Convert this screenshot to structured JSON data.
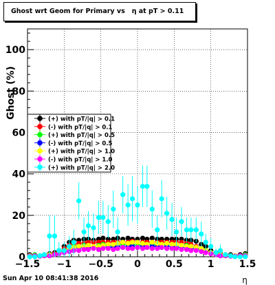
{
  "title": "Ghost wrt Geom for Primary vs   η at pT > 0.11",
  "footer": {
    "timestamp": "Sun Apr 10 08:41:38 2016"
  },
  "chart_data": {
    "type": "scatter",
    "title": "Ghost wrt Geom for Primary vs   η at pT > 0.11",
    "xlabel": "η",
    "ylabel": "Ghost (%)",
    "xlim": [
      -1.5,
      1.5
    ],
    "ylim": [
      0,
      110
    ],
    "x_ticks": [
      -1.5,
      -1,
      -0.5,
      0,
      0.5,
      1,
      1.5
    ],
    "x_tick_labels": [
      "−1.5",
      "−1",
      "−0.5",
      "0",
      "0.5",
      "1",
      "1.5"
    ],
    "y_ticks": [
      0,
      20,
      40,
      60,
      80,
      100
    ],
    "y_tick_labels": [
      "0",
      "20",
      "40",
      "60",
      "80",
      "100"
    ],
    "grid": true,
    "legend_position": "middle-left",
    "series": [
      {
        "name": "(+) with pT/|q| > 0.1",
        "color": "#000000",
        "x": [
          -1.47,
          -1.4,
          -1.33,
          -1.27,
          -1.2,
          -1.13,
          -1.07,
          -1.0,
          -0.93,
          -0.87,
          -0.8,
          -0.73,
          -0.67,
          -0.6,
          -0.53,
          -0.47,
          -0.4,
          -0.33,
          -0.27,
          -0.2,
          -0.13,
          -0.07,
          0.0,
          0.07,
          0.13,
          0.2,
          0.27,
          0.33,
          0.4,
          0.47,
          0.53,
          0.6,
          0.67,
          0.73,
          0.8,
          0.87,
          0.93,
          1.0,
          1.07,
          1.13,
          1.2,
          1.27,
          1.33,
          1.4,
          1.47
        ],
        "y": [
          1,
          1,
          0.5,
          1,
          1.5,
          2,
          3,
          5,
          7,
          8,
          8,
          8.5,
          8.5,
          8,
          8.5,
          9,
          8.5,
          8.5,
          9,
          8.5,
          9,
          8.5,
          8.5,
          9,
          8.5,
          9,
          8.5,
          8.5,
          8.5,
          8.5,
          8.5,
          8.5,
          8,
          8,
          7.5,
          6,
          5,
          3,
          2,
          1.5,
          1,
          1,
          0.5,
          1,
          1.5
        ]
      },
      {
        "name": "(-) with pT/|q| > 0.1",
        "color": "#ff0000",
        "x": [
          -1.47,
          -1.4,
          -1.33,
          -1.27,
          -1.2,
          -1.13,
          -1.07,
          -1.0,
          -0.93,
          -0.87,
          -0.8,
          -0.73,
          -0.67,
          -0.6,
          -0.53,
          -0.47,
          -0.4,
          -0.33,
          -0.27,
          -0.2,
          -0.13,
          -0.07,
          0.0,
          0.07,
          0.13,
          0.2,
          0.27,
          0.33,
          0.4,
          0.47,
          0.53,
          0.6,
          0.67,
          0.73,
          0.8,
          0.87,
          0.93,
          1.0,
          1.07,
          1.13,
          1.2,
          1.27,
          1.33,
          1.4,
          1.47
        ],
        "y": [
          0.5,
          0.5,
          0.5,
          0.5,
          1,
          1.5,
          2,
          4,
          5.5,
          6,
          6.5,
          6.5,
          7,
          7,
          7,
          7,
          7,
          7,
          7,
          7,
          7,
          7.5,
          7,
          7,
          7,
          7,
          7,
          7,
          7,
          7,
          7,
          7,
          6.5,
          6,
          5,
          4,
          3,
          2,
          1.5,
          1,
          0.5,
          0.5,
          0.5,
          0.5,
          1
        ]
      },
      {
        "name": "(+) with pT/|q| > 0.5",
        "color": "#00ff00",
        "x": [
          -1.47,
          -1.4,
          -1.33,
          -1.27,
          -1.2,
          -1.13,
          -1.07,
          -1.0,
          -0.93,
          -0.87,
          -0.8,
          -0.73,
          -0.67,
          -0.6,
          -0.53,
          -0.47,
          -0.4,
          -0.33,
          -0.27,
          -0.2,
          -0.13,
          -0.07,
          0.0,
          0.07,
          0.13,
          0.2,
          0.27,
          0.33,
          0.4,
          0.47,
          0.53,
          0.6,
          0.67,
          0.73,
          0.8,
          0.87,
          0.93,
          1.0,
          1.07,
          1.13,
          1.2,
          1.27,
          1.33,
          1.4,
          1.47
        ],
        "y": [
          0.5,
          1,
          0.5,
          0.5,
          1,
          1,
          2,
          3,
          4,
          5,
          5,
          5.5,
          5.5,
          5,
          5.5,
          6,
          5.5,
          5.5,
          6,
          6,
          6,
          6,
          5.5,
          6,
          6,
          6,
          5.5,
          6,
          6,
          6,
          6,
          5.5,
          5.5,
          5,
          4.5,
          4,
          3,
          2,
          1,
          1,
          0.5,
          0.5,
          0.5,
          0.5,
          1
        ]
      },
      {
        "name": "(-) with pT/|q| > 0.5",
        "color": "#0000ff",
        "x": [
          -1.47,
          -1.4,
          -1.33,
          -1.27,
          -1.2,
          -1.13,
          -1.07,
          -1.0,
          -0.93,
          -0.87,
          -0.8,
          -0.73,
          -0.67,
          -0.6,
          -0.53,
          -0.47,
          -0.4,
          -0.33,
          -0.27,
          -0.2,
          -0.13,
          -0.07,
          0.0,
          0.07,
          0.13,
          0.2,
          0.27,
          0.33,
          0.4,
          0.47,
          0.53,
          0.6,
          0.67,
          0.73,
          0.8,
          0.87,
          0.93,
          1.0,
          1.07,
          1.13,
          1.2,
          1.27,
          1.33,
          1.4,
          1.47
        ],
        "y": [
          0.3,
          0.5,
          0.3,
          0.5,
          0.5,
          1,
          1.5,
          2.5,
          3.5,
          4,
          4.5,
          4.5,
          4.5,
          4.5,
          4.5,
          5,
          4.5,
          4.5,
          5,
          4.5,
          5,
          5,
          4.5,
          5,
          4.5,
          5,
          5,
          4.5,
          5,
          5,
          4.5,
          4.5,
          4.5,
          4,
          4,
          3.5,
          2.5,
          1.5,
          1,
          0.5,
          0.5,
          0.3,
          0.3,
          0.5,
          0.5
        ]
      },
      {
        "name": "(+) with pT/|q| > 1.0",
        "color": "#ffff00",
        "x": [
          -1.47,
          -1.4,
          -1.33,
          -1.27,
          -1.2,
          -1.13,
          -1.07,
          -1.0,
          -0.93,
          -0.87,
          -0.8,
          -0.73,
          -0.67,
          -0.6,
          -0.53,
          -0.47,
          -0.4,
          -0.33,
          -0.27,
          -0.2,
          -0.13,
          -0.07,
          0.0,
          0.07,
          0.13,
          0.2,
          0.27,
          0.33,
          0.4,
          0.47,
          0.53,
          0.6,
          0.67,
          0.73,
          0.8,
          0.87,
          0.93,
          1.0,
          1.07,
          1.13,
          1.2,
          1.27,
          1.33,
          1.4,
          1.47
        ],
        "y": [
          0.5,
          0.5,
          0.5,
          0.5,
          1,
          1,
          2,
          3,
          4,
          4.5,
          5,
          5,
          5.5,
          5,
          5,
          5.5,
          6,
          6,
          6.5,
          7,
          6.5,
          7,
          7,
          6.5,
          6,
          7,
          6.5,
          6,
          6.5,
          6,
          6,
          5.5,
          5,
          5,
          4.5,
          4,
          3,
          2,
          1,
          1,
          0.5,
          0.5,
          0.5,
          0.5,
          0.5
        ]
      },
      {
        "name": "(-) with pT/|q| > 1.0",
        "color": "#ff00ff",
        "x": [
          -1.47,
          -1.4,
          -1.33,
          -1.27,
          -1.2,
          -1.13,
          -1.07,
          -1.0,
          -0.93,
          -0.87,
          -0.8,
          -0.73,
          -0.67,
          -0.6,
          -0.53,
          -0.47,
          -0.4,
          -0.33,
          -0.27,
          -0.2,
          -0.13,
          -0.07,
          0.0,
          0.07,
          0.13,
          0.2,
          0.27,
          0.33,
          0.4,
          0.47,
          0.53,
          0.6,
          0.67,
          0.73,
          0.8,
          0.87,
          0.93,
          1.0,
          1.07,
          1.13,
          1.2,
          1.27,
          1.33,
          1.4,
          1.47
        ],
        "y": [
          0.3,
          0.5,
          0.3,
          0.5,
          0.5,
          1,
          1.5,
          2,
          2.5,
          3,
          3,
          3.5,
          3.5,
          4,
          3.5,
          4,
          4,
          3.5,
          4,
          4.5,
          4,
          4,
          4.5,
          4,
          4.5,
          4,
          4,
          4.5,
          4,
          4,
          4,
          3.5,
          3.5,
          3,
          3,
          2.5,
          2,
          1.5,
          1,
          0.5,
          0.5,
          0.3,
          0.3,
          0.5,
          0.5
        ]
      },
      {
        "name": "(+) with pT/|q| > 2.0",
        "color": "#00ffff",
        "x": [
          -1.47,
          -1.4,
          -1.33,
          -1.27,
          -1.2,
          -1.13,
          -1.07,
          -1.0,
          -0.93,
          -0.87,
          -0.8,
          -0.73,
          -0.67,
          -0.6,
          -0.53,
          -0.47,
          -0.4,
          -0.33,
          -0.27,
          -0.2,
          -0.13,
          -0.07,
          0.0,
          0.07,
          0.13,
          0.2,
          0.27,
          0.33,
          0.4,
          0.47,
          0.53,
          0.6,
          0.67,
          0.73,
          0.8,
          0.87,
          0.93,
          1.0,
          1.07,
          1.13,
          1.2,
          1.27,
          1.33,
          1.4,
          1.47
        ],
        "y": [
          0,
          0,
          0.5,
          1,
          10,
          10,
          3,
          3,
          5,
          7,
          27,
          12,
          15,
          14,
          19,
          19,
          17,
          23,
          12,
          30,
          25,
          28,
          25,
          34,
          34,
          23,
          13,
          28,
          21,
          18,
          12,
          17,
          13,
          13,
          13,
          11,
          7,
          5,
          2,
          3,
          1,
          0.5,
          0,
          0,
          0
        ],
        "yerr": [
          0,
          0,
          1,
          1,
          10,
          10,
          4,
          4,
          5,
          6,
          9,
          7,
          7,
          7,
          8,
          8,
          8,
          9,
          7,
          9,
          10,
          11,
          9,
          10,
          10,
          9,
          7,
          9,
          8,
          8,
          7,
          7,
          6,
          6,
          6,
          6,
          4,
          4,
          2,
          3,
          1,
          1,
          0,
          0,
          0
        ]
      }
    ]
  }
}
